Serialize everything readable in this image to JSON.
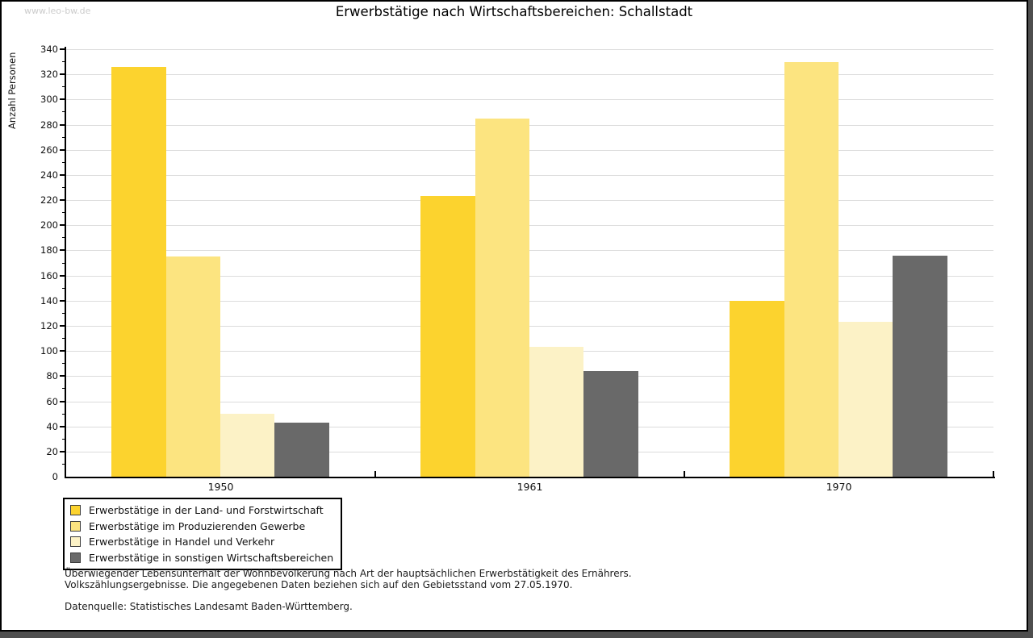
{
  "watermark": "www.leo-bw.de",
  "chart_data": {
    "type": "bar",
    "title": "Erwerbstätige nach Wirtschaftsbereichen: Schallstadt",
    "xlabel": "",
    "ylabel": "Anzahl Personen",
    "categories": [
      "1950",
      "1961",
      "1970"
    ],
    "series": [
      {
        "name": "Erwerbstätige in der Land- und Forstwirtschaft",
        "color": "#FCD32E",
        "values": [
          326,
          223,
          140
        ]
      },
      {
        "name": "Erwerbstätige im Produzierenden Gewerbe",
        "color": "#FCE480",
        "values": [
          175,
          285,
          330
        ]
      },
      {
        "name": "Erwerbstätige in Handel und Verkehr",
        "color": "#FCF2C6",
        "values": [
          50,
          103,
          123
        ]
      },
      {
        "name": "Erwerbstätige in sonstigen Wirtschaftsbereichen",
        "color": "#696969",
        "values": [
          43,
          84,
          176
        ]
      }
    ],
    "ylim": [
      0,
      340
    ],
    "ytick_step": 20,
    "yminor_step": 10,
    "grid": true,
    "legend_position": "bottom-left"
  },
  "footer": {
    "line1": "Überwiegender Lebensunterhalt der Wohnbevölkerung nach Art der hauptsächlichen Erwerbstätigkeit des Ernährers.",
    "line2": "Volkszählungsergebnisse. Die angegebenen Daten beziehen sich auf den Gebietsstand vom 27.05.1970.",
    "source": "Datenquelle: Statistisches Landesamt Baden-Württemberg."
  }
}
